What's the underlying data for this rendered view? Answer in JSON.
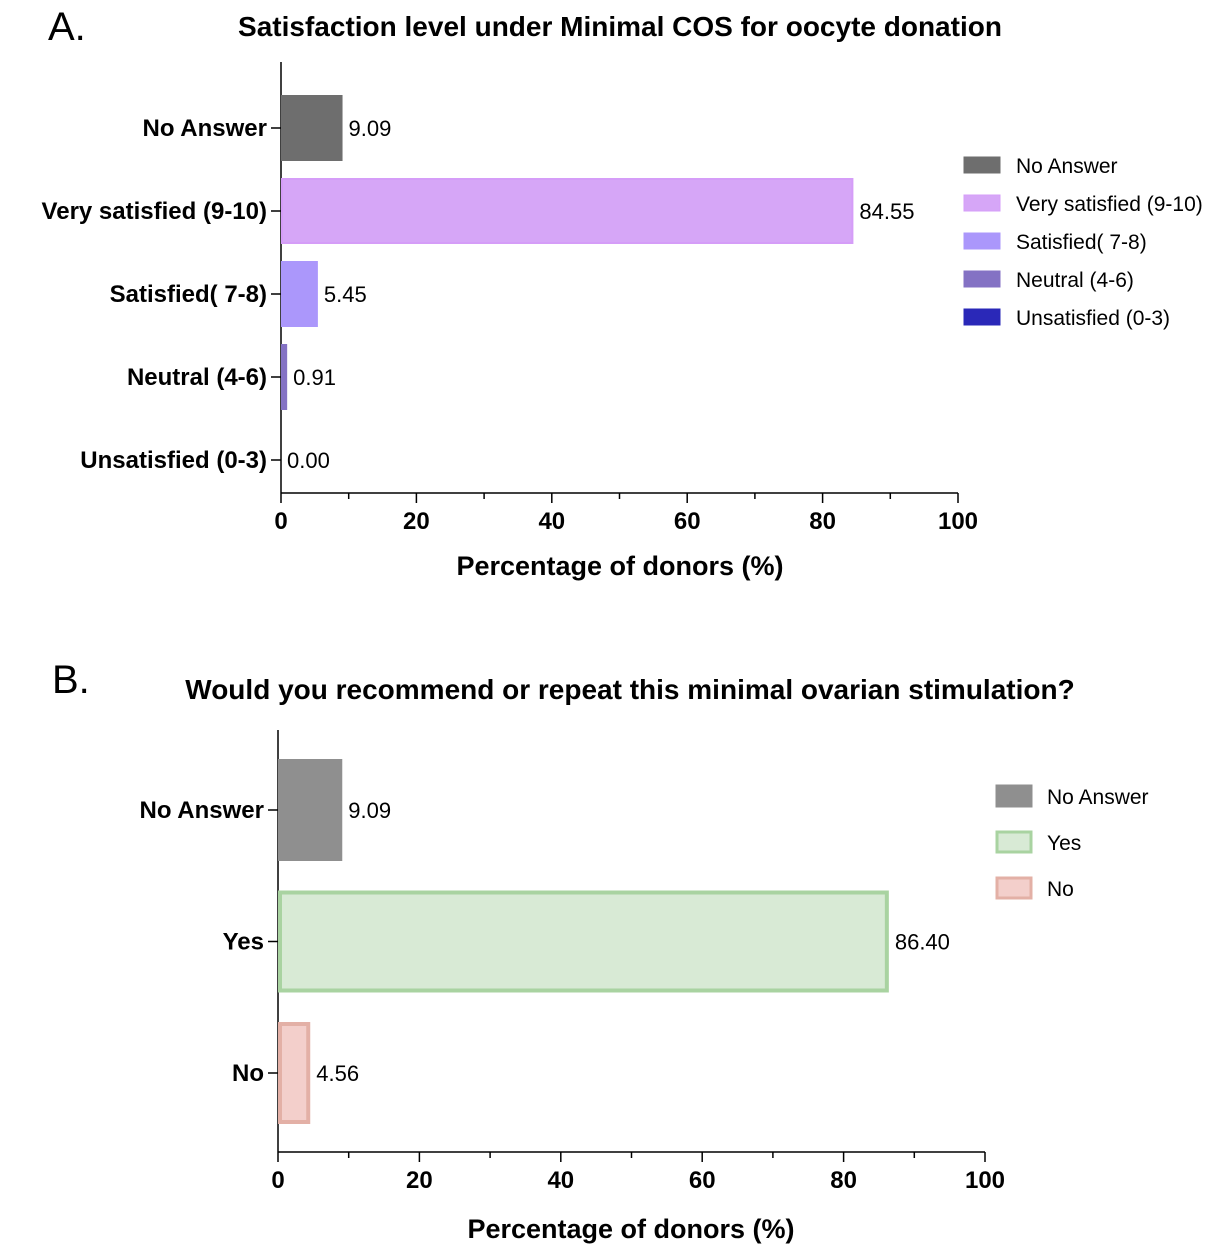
{
  "chart_data": [
    {
      "type": "bar",
      "orientation": "horizontal",
      "panel": "A.",
      "title": "Satisfaction level under Minimal COS for oocyte donation",
      "xlabel": "Percentage of donors (%)",
      "ylabel": "",
      "xlim": [
        0,
        100
      ],
      "xticks": [
        "0",
        "20",
        "40",
        "60",
        "80",
        "100"
      ],
      "categories": [
        "No Answer",
        "Very satisfied (9-10)",
        "Satisfied( 7-8)",
        "Neutral (4-6)",
        "Unsatisfied (0-3)"
      ],
      "values": [
        9.09,
        84.55,
        5.45,
        0.91,
        0.0
      ],
      "value_labels": [
        "9.09",
        "84.55",
        "5.45",
        "0.91",
        "0.00"
      ],
      "colors": [
        "#6e6e6e",
        "#d6a6f7",
        "#ab97fb",
        "#8472c4",
        "#2a28b8"
      ],
      "edge_colors": [
        "#6e6e6e",
        "#d59df8",
        "#ab97fb",
        "#8472c4",
        "#2a28b8"
      ],
      "legend": {
        "position": "right",
        "entries": [
          "No Answer",
          "Very satisfied (9-10)",
          "Satisfied( 7-8)",
          "Neutral (4-6)",
          "Unsatisfied (0-3)"
        ]
      },
      "grid": false
    },
    {
      "type": "bar",
      "orientation": "horizontal",
      "panel": "B.",
      "title": "Would you recommend or repeat this minimal ovarian stimulation?",
      "xlabel": "Percentage of donors (%)",
      "ylabel": "",
      "xlim": [
        0,
        100
      ],
      "xticks": [
        "0",
        "20",
        "40",
        "60",
        "80",
        "100"
      ],
      "categories": [
        "No Answer",
        "Yes",
        "No"
      ],
      "values": [
        9.09,
        86.4,
        4.56
      ],
      "value_labels": [
        "9.09",
        "86.40",
        "4.56"
      ],
      "colors": [
        "#8f8f8f",
        "#d8ead5",
        "#f3cfcb"
      ],
      "edge_colors": [
        "#8f8f8f",
        "#a9d3a1",
        "#e3b0a6"
      ],
      "legend": {
        "position": "right",
        "entries": [
          "No Answer",
          "Yes",
          "No"
        ]
      },
      "grid": false
    }
  ]
}
